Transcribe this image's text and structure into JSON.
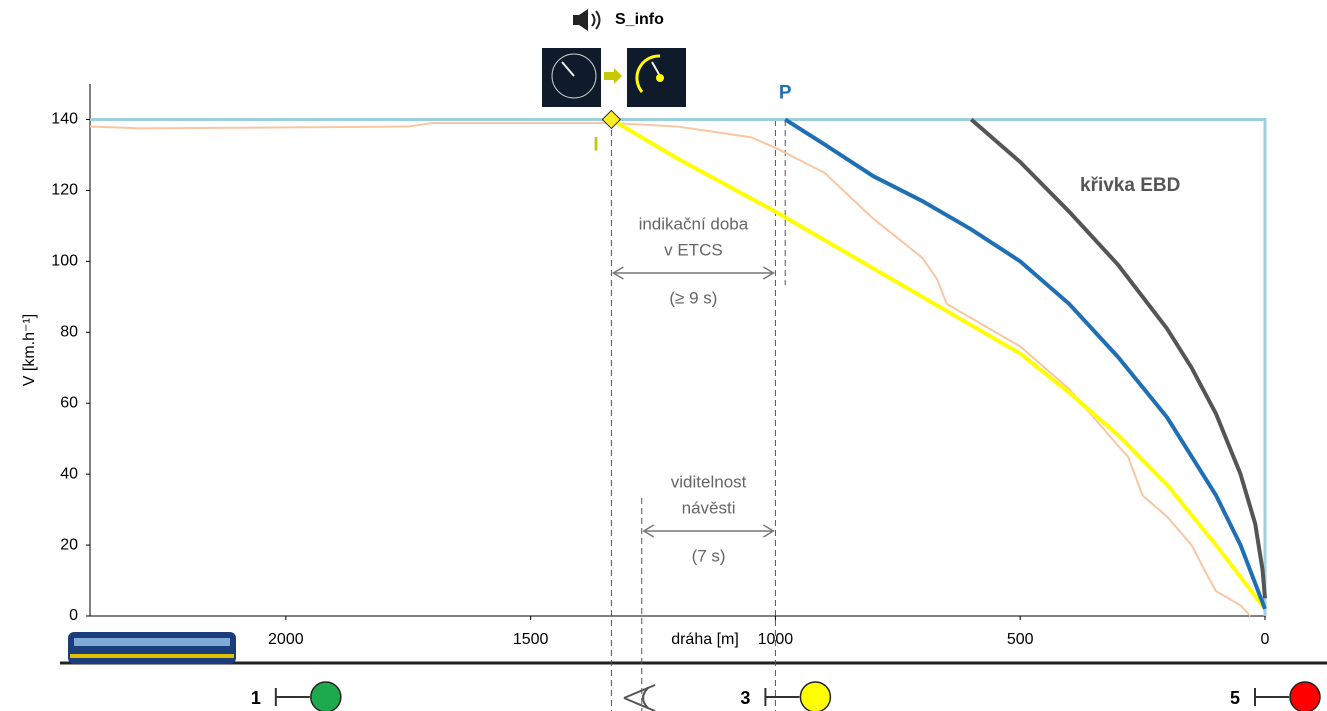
{
  "chart_data": {
    "type": "line",
    "x_label": "dráha [m]",
    "y_label": "V [km.h⁻¹]",
    "xlim": [
      2400,
      0
    ],
    "ylim": [
      0,
      150
    ],
    "xticks": [
      2000,
      1500,
      1000,
      500,
      0
    ],
    "yticks": [
      0,
      20,
      40,
      60,
      80,
      100,
      120,
      140
    ],
    "series": [
      {
        "color": "#9ccfdc",
        "x": [
          2400,
          0,
          0
        ],
        "values": [
          140,
          140,
          0
        ]
      },
      {
        "color": "#f8c6a2",
        "x": [
          2400,
          2300,
          1750,
          1700,
          1335,
          1200,
          1050,
          1000,
          900,
          800,
          700,
          670,
          650,
          600,
          500,
          400,
          300,
          280,
          250,
          200,
          150,
          120,
          100,
          50,
          30
        ],
        "values": [
          138,
          137.5,
          138,
          139,
          139,
          138,
          135,
          132,
          125,
          112,
          101,
          95,
          88,
          84,
          76,
          64,
          48,
          45,
          34,
          28,
          20,
          12,
          7,
          3,
          0
        ]
      },
      {
        "color": "#ffff00",
        "x": [
          1335,
          1200,
          1000,
          800,
          600,
          500,
          400,
          300,
          200,
          100,
          0
        ],
        "values": [
          140,
          129,
          114,
          98,
          82,
          74,
          63,
          51,
          37,
          20,
          2
        ]
      },
      {
        "color": "#1f6fb5",
        "x": [
          980,
          900,
          800,
          700,
          600,
          500,
          400,
          300,
          200,
          100,
          50,
          0
        ],
        "values": [
          140,
          133,
          124,
          117,
          109,
          100,
          88,
          73,
          56,
          34,
          20,
          2
        ]
      },
      {
        "color": "#555555",
        "x": [
          600,
          500,
          400,
          300,
          200,
          150,
          100,
          50,
          20,
          5,
          0
        ],
        "values": [
          140,
          128,
          114,
          99,
          81,
          70,
          57,
          40,
          26,
          13,
          5
        ]
      }
    ],
    "curve_label": "křivka EBD",
    "audio_label": "S_info",
    "markers": [
      {
        "label": "I",
        "x": 1335,
        "value": 140,
        "color": "#c8c800"
      },
      {
        "label": "P",
        "x": 980,
        "value": 140,
        "color": "#1f6fb5"
      }
    ],
    "guides": [
      1335,
      1273,
      1000,
      980
    ],
    "spans": [
      {
        "from": 1335,
        "to": 1000,
        "lines": [
          "indikační doba",
          "v ETCS"
        ],
        "note": "(≥ 9 s)"
      },
      {
        "from": 1273,
        "to": 1000,
        "lines": [
          "viditelnost",
          "návěsti"
        ],
        "note": "(7 s)"
      }
    ],
    "signals": [
      {
        "label": "1",
        "x": 2000,
        "color": "#1daa4c"
      },
      {
        "label": "3",
        "x": 1000,
        "color": "#ffff00"
      },
      {
        "label": "5",
        "x": 0,
        "color": "#ff0000"
      }
    ]
  }
}
